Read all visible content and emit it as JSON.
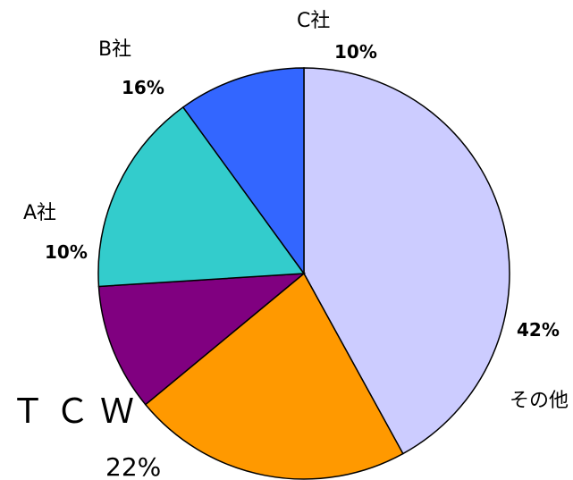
{
  "chart_data": {
    "type": "pie",
    "title": "",
    "slices": [
      {
        "label": "その他",
        "value": 42,
        "value_label": "42%",
        "color": "#ccccff"
      },
      {
        "label": "ＴＣＷ",
        "value": 22,
        "value_label": "22%",
        "color": "#ff9900"
      },
      {
        "label": "A社",
        "value": 10,
        "value_label": "10%",
        "color": "#800080"
      },
      {
        "label": "B社",
        "value": 16,
        "value_label": "16%",
        "color": "#33cccc"
      },
      {
        "label": "C社",
        "value": 10,
        "value_label": "10%",
        "color": "#3366ff"
      }
    ],
    "start_angle_deg": 0,
    "direction": "clockwise",
    "legend": "none"
  }
}
